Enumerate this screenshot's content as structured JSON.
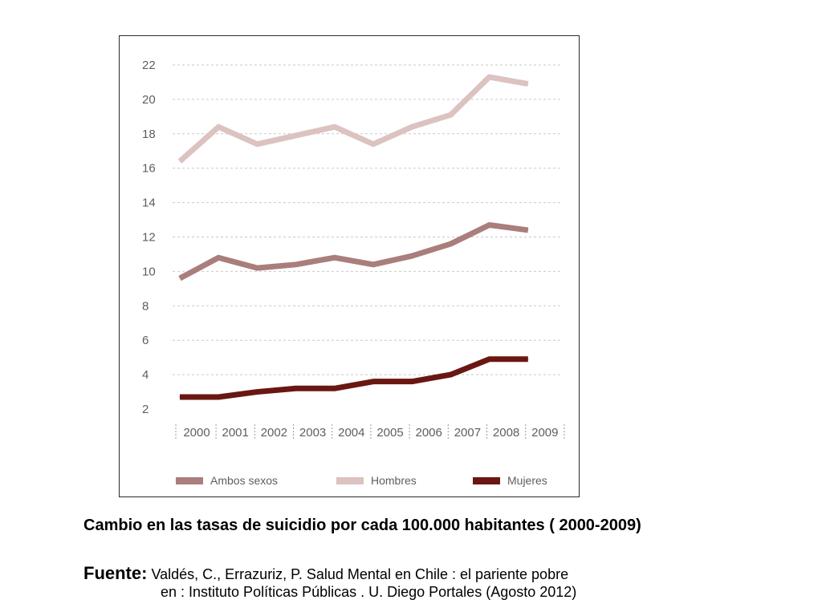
{
  "chart_data": {
    "type": "line",
    "title": "",
    "xlabel": "",
    "ylabel": "",
    "categories": [
      "2000",
      "2001",
      "2002",
      "2003",
      "2004",
      "2005",
      "2006",
      "2007",
      "2008",
      "2009"
    ],
    "ylim": [
      2,
      22
    ],
    "yticks": [
      "2",
      "4",
      "6",
      "8",
      "10",
      "12",
      "14",
      "16",
      "18",
      "20",
      "22"
    ],
    "grid": "horizontal dashed",
    "legend_position": "bottom",
    "series": [
      {
        "name": "Ambos sexos",
        "color": "#a97e7c",
        "values": [
          9.6,
          10.8,
          10.2,
          10.4,
          10.8,
          10.4,
          10.9,
          11.6,
          12.7,
          12.4
        ]
      },
      {
        "name": "Hombres",
        "color": "#dcc2c0",
        "values": [
          16.4,
          18.4,
          17.4,
          17.9,
          18.4,
          17.4,
          18.4,
          19.1,
          21.3,
          20.9
        ]
      },
      {
        "name": "Mujeres",
        "color": "#6a1712",
        "values": [
          2.7,
          2.7,
          3.0,
          3.2,
          3.2,
          3.6,
          3.6,
          4.0,
          4.9,
          4.9
        ]
      }
    ]
  },
  "caption": "Cambio en las tasas de suicidio por cada 100.000 habitantes ( 2000-2009)",
  "source": {
    "label": "Fuente:",
    "line1": "Valdés, C., Errazuriz, P. Salud Mental en Chile : el pariente pobre",
    "line2": "en : Instituto Políticas Públicas . U. Diego Portales (Agosto 2012)"
  }
}
